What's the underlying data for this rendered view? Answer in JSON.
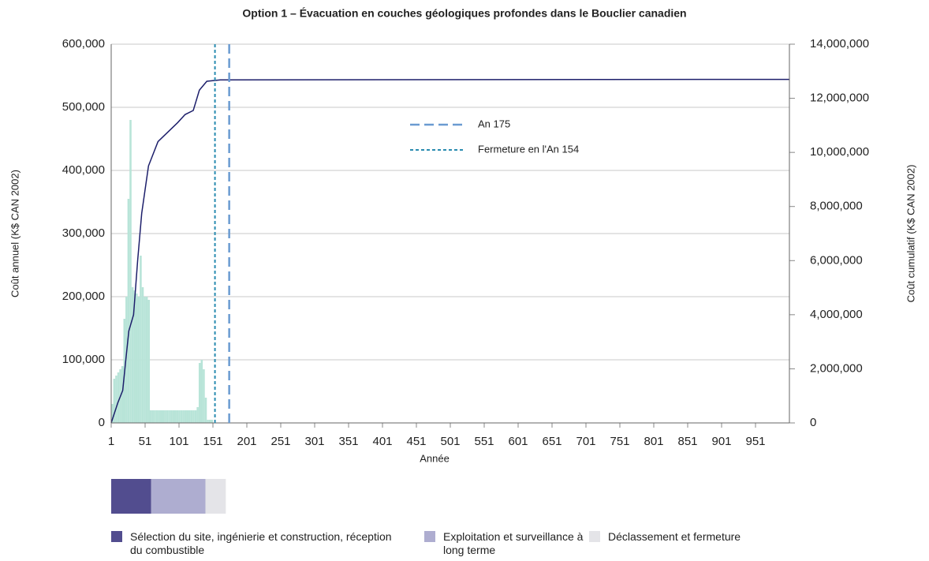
{
  "chart_data": {
    "type": "bar",
    "title": "Option 1 – Évacuation en couches géologiques profondes dans le Bouclier canadien",
    "xlabel": "Année",
    "ylabel": "Coût annuel (K$ CAN 2002)",
    "y2label": "Coût cumulatif (K$ CAN 2002)",
    "xlim": [
      1,
      1001
    ],
    "xticks": [
      1,
      51,
      101,
      151,
      201,
      251,
      301,
      351,
      401,
      451,
      501,
      551,
      601,
      651,
      701,
      751,
      801,
      851,
      901,
      951
    ],
    "ylim": [
      0,
      600000
    ],
    "yticks": [
      0,
      {
        "value": 100000,
        "label": "100,000"
      },
      {
        "value": 200000,
        "label": "200,000"
      },
      {
        "value": 300000,
        "label": "300,000"
      },
      {
        "value": 400000,
        "label": "400,000"
      },
      {
        "value": 500000,
        "label": "500,000"
      },
      {
        "value": 600000,
        "label": "600,000"
      }
    ],
    "y2lim": [
      0,
      14000000
    ],
    "y2ticks": [
      0,
      {
        "value": 2000000,
        "label": "2,000,000"
      },
      {
        "value": 4000000,
        "label": "4,000,000"
      },
      {
        "value": 6000000,
        "label": "6,000,000"
      },
      {
        "value": 8000000,
        "label": "8,000,000"
      },
      {
        "value": 10000000,
        "label": "10,000,000"
      },
      {
        "value": 12000000,
        "label": "12,000,000"
      },
      {
        "value": 14000000,
        "label": "14,000,000"
      }
    ],
    "grid": true,
    "series": [
      {
        "type": "bar",
        "color": "#b8e4d8",
        "x": [
          1,
          4,
          7,
          10,
          13,
          16,
          19,
          22,
          25,
          28,
          31,
          34,
          37,
          40,
          43,
          46,
          49,
          52,
          55,
          58,
          61,
          64,
          67,
          70,
          73,
          76,
          79,
          82,
          85,
          88,
          91,
          94,
          97,
          100,
          103,
          106,
          109,
          112,
          115,
          118,
          121,
          124,
          127,
          130,
          133,
          136,
          139,
          142,
          145,
          148
        ],
        "values": [
          30000,
          70000,
          75000,
          80000,
          85000,
          90000,
          165000,
          200000,
          355000,
          480000,
          215000,
          210000,
          205000,
          200000,
          265000,
          215000,
          200000,
          200000,
          195000,
          20000,
          20000,
          20000,
          20000,
          20000,
          20000,
          20000,
          20000,
          20000,
          20000,
          20000,
          20000,
          20000,
          20000,
          20000,
          20000,
          20000,
          20000,
          20000,
          20000,
          20000,
          20000,
          20000,
          25000,
          95000,
          100000,
          85000,
          40000,
          5000,
          5000,
          5000
        ]
      },
      {
        "type": "line",
        "axis": "y2",
        "color": "#1d1f6b",
        "x": [
          1,
          11,
          18,
          22,
          27,
          34,
          40,
          46,
          56,
          70,
          99,
          110,
          122,
          131,
          142,
          162,
          1001
        ],
        "values": [
          0,
          760000,
          1200000,
          2200000,
          3400000,
          4000000,
          6000000,
          7750000,
          9500000,
          10400000,
          11100000,
          11400000,
          11550000,
          12300000,
          12630000,
          12680000,
          12700000
        ]
      }
    ],
    "vlines": [
      {
        "name": "An 175",
        "x": 175,
        "color": "#6b9bd1",
        "style": "dashed"
      },
      {
        "name": "Fermeture en l'An 154",
        "x": 154,
        "color": "#2a8cb0",
        "style": "dotted"
      }
    ],
    "phases": [
      {
        "name": "Sélection du site, ingénierie et construction, réception du combustible",
        "color": "#524d8f",
        "start": 1,
        "end": 60
      },
      {
        "name": "Exploitation et surveillance à long terme",
        "color": "#aeadd0",
        "start": 60,
        "end": 140
      },
      {
        "name": "Déclassement et fermeture",
        "color": "#e4e4e8",
        "start": 140,
        "end": 170
      }
    ]
  }
}
